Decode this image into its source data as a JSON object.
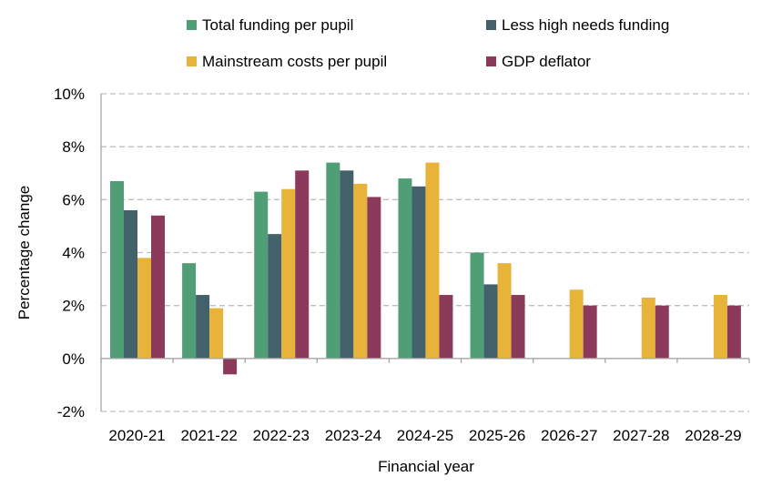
{
  "chart_data": {
    "type": "bar",
    "xlabel": "Financial year",
    "ylabel": "Percentage change",
    "ylim": [
      -2,
      10
    ],
    "yticks": [
      -2,
      0,
      2,
      4,
      6,
      8,
      10
    ],
    "ytick_labels": [
      "-2%",
      "0%",
      "2%",
      "4%",
      "6%",
      "8%",
      "10%"
    ],
    "grid": true,
    "legend_position": "top",
    "categories": [
      "2020-21",
      "2021-22",
      "2022-23",
      "2023-24",
      "2024-25",
      "2025-26",
      "2026-27",
      "2027-28",
      "2028-29"
    ],
    "series": [
      {
        "name": "Total funding per pupil",
        "color": "#4f9e76",
        "values": [
          6.7,
          3.6,
          6.3,
          7.4,
          6.8,
          4.0,
          null,
          null,
          null
        ]
      },
      {
        "name": "Less high needs funding",
        "color": "#42616b",
        "values": [
          5.6,
          2.4,
          4.7,
          7.1,
          6.5,
          2.8,
          null,
          null,
          null
        ]
      },
      {
        "name": "Mainstream costs per pupil",
        "color": "#e8b339",
        "values": [
          3.8,
          1.9,
          6.4,
          6.6,
          7.4,
          3.6,
          2.6,
          2.3,
          2.4
        ]
      },
      {
        "name": "GDP deflator",
        "color": "#8c3a5c",
        "values": [
          5.4,
          -0.6,
          7.1,
          6.1,
          2.4,
          2.4,
          2.0,
          2.0,
          2.0
        ]
      }
    ]
  }
}
